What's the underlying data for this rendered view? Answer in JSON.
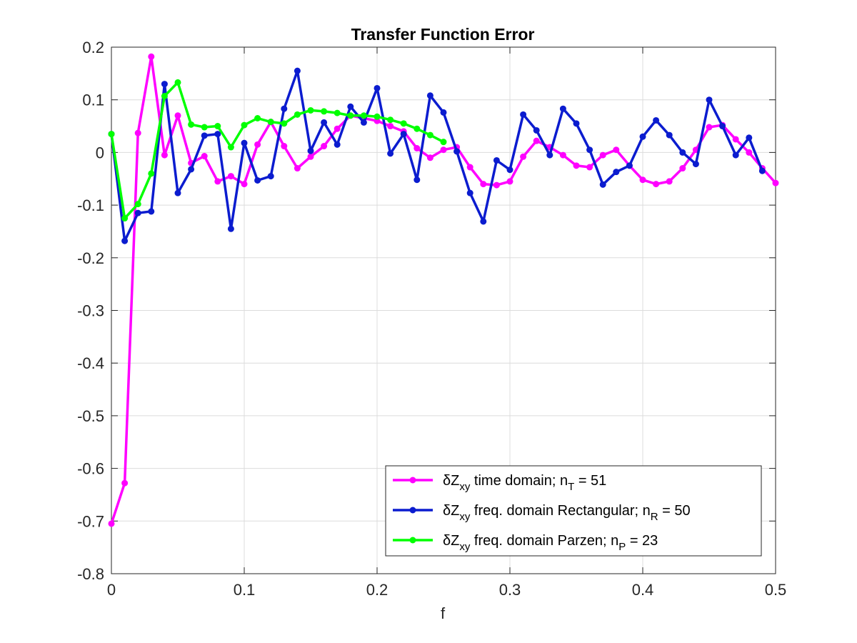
{
  "chart_data": {
    "type": "line",
    "title": "Transfer Function Error",
    "xlabel": "f",
    "ylabel": "",
    "xlim": [
      0,
      0.5
    ],
    "ylim": [
      -0.8,
      0.2
    ],
    "xticks": [
      0,
      0.1,
      0.2,
      0.3,
      0.4,
      0.5
    ],
    "xtick_labels": [
      "0",
      "0.1",
      "0.2",
      "0.3",
      "0.4",
      "0.5"
    ],
    "yticks": [
      -0.8,
      -0.7,
      -0.6,
      -0.5,
      -0.4,
      -0.3,
      -0.2,
      -0.1,
      0,
      0.1,
      0.2
    ],
    "ytick_labels": [
      "-0.8",
      "-0.7",
      "-0.6",
      "-0.5",
      "-0.4",
      "-0.3",
      "-0.2",
      "-0.1",
      "0",
      "0.1",
      "0.2"
    ],
    "grid": true,
    "legend_position": "bottom-right",
    "series": [
      {
        "legend": {
          "prefix": "δZ",
          "sub": "xy",
          "text": " time domain; n",
          "n_sub": "T",
          "suffix": " = 51"
        },
        "color": "#ff00ff",
        "x": [
          0,
          0.01,
          0.02,
          0.03,
          0.04,
          0.05,
          0.06,
          0.07,
          0.08,
          0.09,
          0.1,
          0.11,
          0.12,
          0.13,
          0.14,
          0.15,
          0.16,
          0.17,
          0.18,
          0.19,
          0.2,
          0.21,
          0.22,
          0.23,
          0.24,
          0.25,
          0.26,
          0.27,
          0.28,
          0.29,
          0.3,
          0.31,
          0.32,
          0.33,
          0.34,
          0.35,
          0.36,
          0.37,
          0.38,
          0.39,
          0.4,
          0.41,
          0.42,
          0.43,
          0.44,
          0.45,
          0.46,
          0.47,
          0.48,
          0.49,
          0.5
        ],
        "y": [
          -0.705,
          -0.628,
          0.037,
          0.182,
          -0.005,
          0.07,
          -0.02,
          -0.007,
          -0.055,
          -0.045,
          -0.06,
          0.015,
          0.058,
          0.012,
          -0.03,
          -0.008,
          0.012,
          0.045,
          0.07,
          0.065,
          0.06,
          0.05,
          0.04,
          0.008,
          -0.01,
          0.005,
          0.01,
          -0.028,
          -0.06,
          -0.062,
          -0.055,
          -0.008,
          0.022,
          0.01,
          -0.005,
          -0.025,
          -0.028,
          -0.005,
          0.005,
          -0.025,
          -0.052,
          -0.06,
          -0.055,
          -0.03,
          0.005,
          0.048,
          0.052,
          0.025,
          0,
          -0.03,
          -0.058
        ]
      },
      {
        "legend": {
          "prefix": "δZ",
          "sub": "xy",
          "text": " freq. domain Rectangular; n",
          "n_sub": "R",
          "suffix": " = 50"
        },
        "color": "#0b1ccf",
        "x": [
          0,
          0.01,
          0.02,
          0.03,
          0.04,
          0.05,
          0.06,
          0.07,
          0.08,
          0.09,
          0.1,
          0.11,
          0.12,
          0.13,
          0.14,
          0.15,
          0.16,
          0.17,
          0.18,
          0.19,
          0.2,
          0.21,
          0.22,
          0.23,
          0.24,
          0.25,
          0.26,
          0.27,
          0.28,
          0.29,
          0.3,
          0.31,
          0.32,
          0.33,
          0.34,
          0.35,
          0.36,
          0.37,
          0.38,
          0.39,
          0.4,
          0.41,
          0.42,
          0.43,
          0.44,
          0.45,
          0.46,
          0.47,
          0.48,
          0.49
        ],
        "y": [
          0.035,
          -0.168,
          -0.115,
          -0.112,
          0.13,
          -0.077,
          -0.032,
          0.032,
          0.035,
          -0.145,
          0.018,
          -0.053,
          -0.045,
          0.083,
          0.155,
          0.003,
          0.057,
          0.015,
          0.087,
          0.057,
          0.122,
          -0.002,
          0.035,
          -0.052,
          0.108,
          0.076,
          0.002,
          -0.077,
          -0.131,
          -0.015,
          -0.033,
          0.072,
          0.042,
          -0.005,
          0.083,
          0.055,
          0.005,
          -0.061,
          -0.037,
          -0.025,
          0.03,
          0.061,
          0.033,
          0,
          -0.022,
          0.1,
          0.05,
          -0.005,
          0.028,
          -0.035
        ]
      },
      {
        "legend": {
          "prefix": "δZ",
          "sub": "xy",
          "text": " freq. domain Parzen; n",
          "n_sub": "P",
          "suffix": " = 23"
        },
        "color": "#00ff00",
        "x": [
          0,
          0.01,
          0.02,
          0.03,
          0.04,
          0.05,
          0.06,
          0.07,
          0.08,
          0.09,
          0.1,
          0.11,
          0.12,
          0.13,
          0.14,
          0.15,
          0.16,
          0.17,
          0.18,
          0.19,
          0.2,
          0.21,
          0.22,
          0.23,
          0.24,
          0.25
        ],
        "y": [
          0.035,
          -0.125,
          -0.098,
          -0.04,
          0.107,
          0.133,
          0.053,
          0.048,
          0.05,
          0.01,
          0.052,
          0.065,
          0.058,
          0.055,
          0.072,
          0.08,
          0.078,
          0.075,
          0.07,
          0.07,
          0.068,
          0.062,
          0.055,
          0.045,
          0.033,
          0.02
        ]
      }
    ]
  }
}
